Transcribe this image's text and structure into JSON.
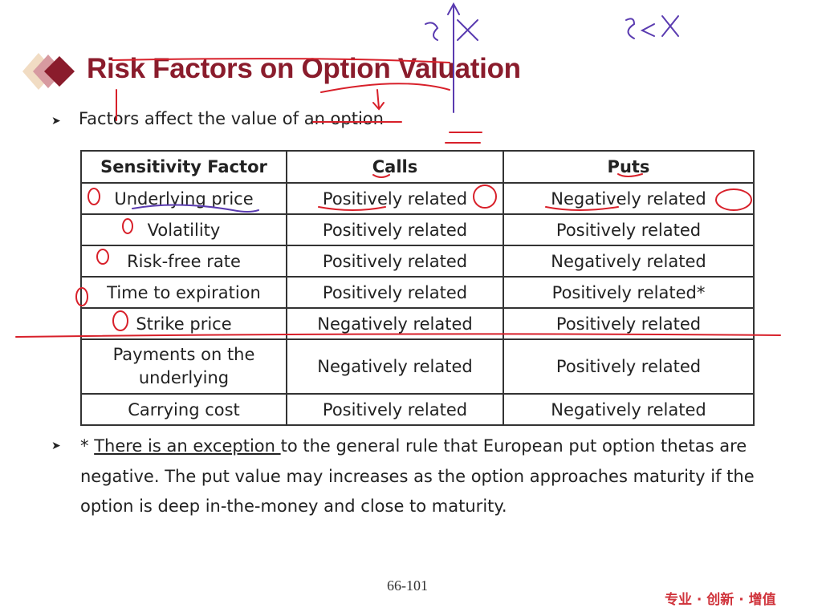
{
  "slide": {
    "title": "Risk Factors on Option Valuation",
    "subtitle": "Factors affect the value of an option",
    "bullet_icon": "arrowhead-bullet-icon",
    "table": {
      "headers": [
        "Sensitivity Factor",
        "Calls",
        "Puts"
      ],
      "rows": [
        [
          "Underlying price",
          "Positively related",
          "Negatively related"
        ],
        [
          "Volatility",
          "Positively related",
          "Positively related"
        ],
        [
          "Risk-free rate",
          "Positively related",
          "Negatively related"
        ],
        [
          "Time to expiration",
          "Positively related",
          "Positively related*"
        ],
        [
          "Strike price",
          "Negatively related",
          "Positively related"
        ],
        [
          "Payments on the underlying",
          "Negatively related",
          "Positively related"
        ],
        [
          "Carrying cost",
          "Positively related",
          "Negatively related"
        ]
      ]
    },
    "note": {
      "prefix": "* ",
      "underlined": "There is an exception ",
      "rest": "to the general rule that European put option thetas are negative. The put value may increases as the option approaches maturity if the option is deep in-the-money and close to maturity."
    },
    "page_number": "66-101",
    "slogan": "专业 · 创新 · 增值"
  },
  "colors": {
    "title": "#8a1c2c",
    "slogan": "#d0343c",
    "ink_red": "#d8202a",
    "ink_purple": "#5a3bb0"
  }
}
